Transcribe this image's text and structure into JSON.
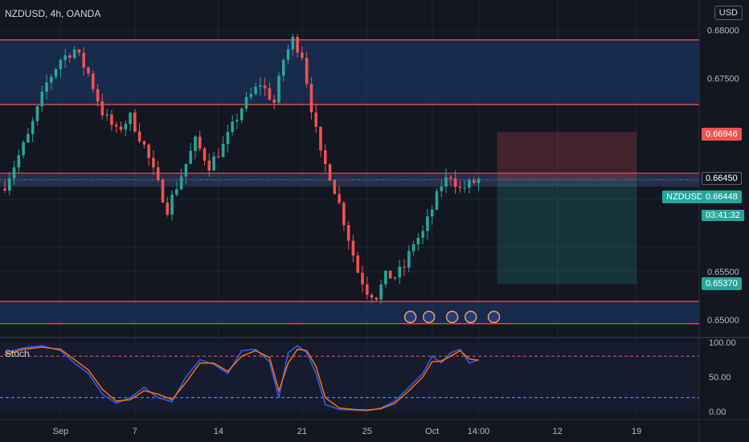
{
  "header": {
    "symbol": "NZDUSD, 4h, OANDA",
    "currency": "USD"
  },
  "indicator": {
    "label": "Stoch"
  },
  "price_tags": {
    "stop": "0.66946",
    "entry": "0.66450",
    "last_symbol": "NZDUSD",
    "last": "0.66448",
    "countdown": "03:41:32",
    "target": "0.65370"
  },
  "colors": {
    "bg": "#131722",
    "up": "#26a69a",
    "down": "#ef5350",
    "zone": "#1e3a6e",
    "grid": "#1f2433"
  },
  "chart_data": {
    "type": "candlestick",
    "y_ticks": [
      0.65,
      0.655,
      0.665,
      0.675,
      0.68
    ],
    "y_tick_labels": [
      "0.65000",
      "0.65500",
      "0.66450",
      "0.67500",
      "0.68000"
    ],
    "ylim": [
      0.6485,
      0.6808
    ],
    "x_tick_labels": [
      "Sep",
      "7",
      "14",
      "21",
      "25",
      "Oct",
      "14:00",
      "12",
      "19"
    ],
    "x_tick_bar_index": [
      12,
      28,
      46,
      64,
      78,
      92,
      102,
      119,
      136
    ],
    "resistance_zone": [
      0.6723,
      0.679
    ],
    "support_zone": [
      0.6496,
      0.6519
    ],
    "entry_level": 0.6645,
    "position": {
      "entry": 0.6645,
      "stop": 0.66946,
      "target": 0.6537,
      "start_bar": 106,
      "end_bar": 136
    },
    "close_path": [
      [
        0,
        0.664
      ],
      [
        5,
        0.669
      ],
      [
        9,
        0.6745
      ],
      [
        12,
        0.677
      ],
      [
        15,
        0.678
      ],
      [
        18,
        0.6755
      ],
      [
        21,
        0.6715
      ],
      [
        24,
        0.6695
      ],
      [
        27,
        0.671
      ],
      [
        30,
        0.668
      ],
      [
        33,
        0.664
      ],
      [
        35,
        0.6615
      ],
      [
        38,
        0.665
      ],
      [
        41,
        0.6685
      ],
      [
        44,
        0.666
      ],
      [
        47,
        0.668
      ],
      [
        51,
        0.672
      ],
      [
        55,
        0.6745
      ],
      [
        58,
        0.6725
      ],
      [
        60,
        0.677
      ],
      [
        62,
        0.679
      ],
      [
        64,
        0.6775
      ],
      [
        66,
        0.672
      ],
      [
        68,
        0.667
      ],
      [
        70,
        0.665
      ],
      [
        72,
        0.662
      ],
      [
        74,
        0.6585
      ],
      [
        76,
        0.655
      ],
      [
        78,
        0.653
      ],
      [
        80,
        0.6525
      ],
      [
        82,
        0.6545
      ],
      [
        84,
        0.6545
      ],
      [
        86,
        0.6555
      ],
      [
        88,
        0.658
      ],
      [
        90,
        0.659
      ],
      [
        92,
        0.6615
      ],
      [
        94,
        0.664
      ],
      [
        96,
        0.665
      ],
      [
        98,
        0.6635
      ],
      [
        100,
        0.664
      ],
      [
        102,
        0.6645
      ]
    ],
    "stochastic": {
      "ylim": [
        0,
        100
      ],
      "levels": [
        80,
        20
      ],
      "tick_labels": [
        "100.00",
        "50.00",
        "0.00"
      ],
      "k": [
        [
          0,
          85
        ],
        [
          4,
          92
        ],
        [
          8,
          95
        ],
        [
          12,
          88
        ],
        [
          15,
          70
        ],
        [
          18,
          55
        ],
        [
          21,
          25
        ],
        [
          24,
          12
        ],
        [
          27,
          20
        ],
        [
          30,
          35
        ],
        [
          33,
          20
        ],
        [
          36,
          14
        ],
        [
          39,
          50
        ],
        [
          42,
          75
        ],
        [
          45,
          68
        ],
        [
          48,
          55
        ],
        [
          51,
          88
        ],
        [
          54,
          90
        ],
        [
          57,
          72
        ],
        [
          59,
          20
        ],
        [
          61,
          85
        ],
        [
          63,
          95
        ],
        [
          65,
          85
        ],
        [
          67,
          55
        ],
        [
          69,
          10
        ],
        [
          72,
          3
        ],
        [
          75,
          2
        ],
        [
          78,
          1
        ],
        [
          81,
          5
        ],
        [
          84,
          15
        ],
        [
          87,
          35
        ],
        [
          90,
          55
        ],
        [
          92,
          80
        ],
        [
          94,
          70
        ],
        [
          96,
          85
        ],
        [
          98,
          90
        ],
        [
          100,
          70
        ],
        [
          102,
          75
        ]
      ],
      "d": [
        [
          0,
          82
        ],
        [
          4,
          90
        ],
        [
          8,
          93
        ],
        [
          12,
          90
        ],
        [
          15,
          75
        ],
        [
          18,
          60
        ],
        [
          21,
          32
        ],
        [
          24,
          15
        ],
        [
          27,
          17
        ],
        [
          30,
          30
        ],
        [
          33,
          25
        ],
        [
          36,
          17
        ],
        [
          39,
          42
        ],
        [
          42,
          70
        ],
        [
          45,
          70
        ],
        [
          48,
          58
        ],
        [
          51,
          80
        ],
        [
          54,
          88
        ],
        [
          57,
          78
        ],
        [
          59,
          30
        ],
        [
          61,
          70
        ],
        [
          63,
          90
        ],
        [
          65,
          88
        ],
        [
          67,
          65
        ],
        [
          69,
          20
        ],
        [
          72,
          5
        ],
        [
          75,
          3
        ],
        [
          78,
          2
        ],
        [
          81,
          4
        ],
        [
          84,
          12
        ],
        [
          87,
          30
        ],
        [
          90,
          50
        ],
        [
          92,
          72
        ],
        [
          94,
          73
        ],
        [
          96,
          80
        ],
        [
          98,
          88
        ],
        [
          100,
          76
        ],
        [
          102,
          74
        ]
      ]
    }
  }
}
